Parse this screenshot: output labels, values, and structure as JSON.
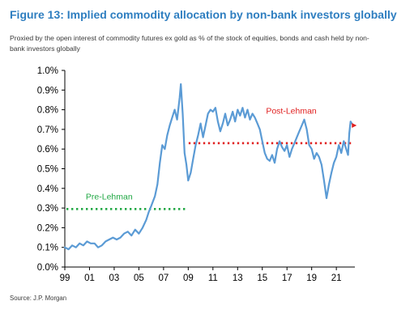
{
  "figure": {
    "title": "Figure 13: Implied commodity allocation by non-bank investors globally",
    "subtitle": "Proxied by the open interest of commodity futures ex gold as % of the stock of equities, bonds and cash held by non-bank investors globally",
    "source": "Source: J.P. Morgan"
  },
  "colors": {
    "title": "#2e7ec0",
    "line": "#5b9bd5",
    "pre_lehman": "#22a845",
    "post_lehman": "#e02020"
  },
  "chart_data": {
    "type": "line",
    "xlim": [
      1999,
      2022.5
    ],
    "ylim": [
      0,
      1.0
    ],
    "x_tick_values": [
      1999,
      2001,
      2003,
      2005,
      2007,
      2009,
      2011,
      2013,
      2015,
      2017,
      2019,
      2021
    ],
    "x_tick_labels": [
      "99",
      "01",
      "03",
      "05",
      "07",
      "09",
      "11",
      "13",
      "15",
      "17",
      "19",
      "21"
    ],
    "y_tick_values": [
      0,
      0.1,
      0.2,
      0.3,
      0.4,
      0.5,
      0.6,
      0.7,
      0.8,
      0.9,
      1.0
    ],
    "y_tick_labels": [
      "0.0%",
      "0.1%",
      "0.2%",
      "0.3%",
      "0.4%",
      "0.5%",
      "0.6%",
      "0.7%",
      "0.8%",
      "0.9%",
      "1.0%"
    ],
    "series": [
      {
        "points": [
          [
            1999.0,
            0.1
          ],
          [
            1999.3,
            0.09
          ],
          [
            1999.6,
            0.11
          ],
          [
            1999.9,
            0.1
          ],
          [
            2000.2,
            0.12
          ],
          [
            2000.5,
            0.11
          ],
          [
            2000.8,
            0.13
          ],
          [
            2001.1,
            0.12
          ],
          [
            2001.4,
            0.12
          ],
          [
            2001.7,
            0.1
          ],
          [
            2002.0,
            0.11
          ],
          [
            2002.3,
            0.13
          ],
          [
            2002.6,
            0.14
          ],
          [
            2002.9,
            0.15
          ],
          [
            2003.2,
            0.14
          ],
          [
            2003.5,
            0.15
          ],
          [
            2003.8,
            0.17
          ],
          [
            2004.1,
            0.18
          ],
          [
            2004.4,
            0.16
          ],
          [
            2004.7,
            0.19
          ],
          [
            2005.0,
            0.17
          ],
          [
            2005.3,
            0.2
          ],
          [
            2005.6,
            0.24
          ],
          [
            2005.8,
            0.28
          ],
          [
            2006.0,
            0.31
          ],
          [
            2006.3,
            0.36
          ],
          [
            2006.5,
            0.42
          ],
          [
            2006.7,
            0.53
          ],
          [
            2006.9,
            0.62
          ],
          [
            2007.1,
            0.6
          ],
          [
            2007.3,
            0.67
          ],
          [
            2007.5,
            0.72
          ],
          [
            2007.7,
            0.76
          ],
          [
            2007.9,
            0.8
          ],
          [
            2008.1,
            0.75
          ],
          [
            2008.3,
            0.86
          ],
          [
            2008.4,
            0.93
          ],
          [
            2008.55,
            0.78
          ],
          [
            2008.7,
            0.58
          ],
          [
            2008.85,
            0.52
          ],
          [
            2009.0,
            0.44
          ],
          [
            2009.2,
            0.48
          ],
          [
            2009.4,
            0.55
          ],
          [
            2009.6,
            0.62
          ],
          [
            2009.8,
            0.67
          ],
          [
            2010.0,
            0.73
          ],
          [
            2010.2,
            0.66
          ],
          [
            2010.4,
            0.72
          ],
          [
            2010.6,
            0.78
          ],
          [
            2010.8,
            0.8
          ],
          [
            2011.0,
            0.79
          ],
          [
            2011.2,
            0.81
          ],
          [
            2011.4,
            0.74
          ],
          [
            2011.6,
            0.69
          ],
          [
            2011.8,
            0.73
          ],
          [
            2012.0,
            0.78
          ],
          [
            2012.2,
            0.72
          ],
          [
            2012.4,
            0.75
          ],
          [
            2012.6,
            0.79
          ],
          [
            2012.8,
            0.74
          ],
          [
            2013.0,
            0.8
          ],
          [
            2013.2,
            0.77
          ],
          [
            2013.4,
            0.81
          ],
          [
            2013.6,
            0.76
          ],
          [
            2013.8,
            0.8
          ],
          [
            2014.0,
            0.75
          ],
          [
            2014.2,
            0.78
          ],
          [
            2014.4,
            0.76
          ],
          [
            2014.6,
            0.73
          ],
          [
            2014.8,
            0.7
          ],
          [
            2015.0,
            0.64
          ],
          [
            2015.2,
            0.58
          ],
          [
            2015.4,
            0.55
          ],
          [
            2015.6,
            0.54
          ],
          [
            2015.8,
            0.57
          ],
          [
            2016.0,
            0.53
          ],
          [
            2016.2,
            0.6
          ],
          [
            2016.4,
            0.64
          ],
          [
            2016.6,
            0.61
          ],
          [
            2016.8,
            0.59
          ],
          [
            2017.0,
            0.62
          ],
          [
            2017.2,
            0.56
          ],
          [
            2017.4,
            0.6
          ],
          [
            2017.6,
            0.63
          ],
          [
            2017.8,
            0.66
          ],
          [
            2018.0,
            0.69
          ],
          [
            2018.2,
            0.72
          ],
          [
            2018.4,
            0.75
          ],
          [
            2018.6,
            0.7
          ],
          [
            2018.8,
            0.62
          ],
          [
            2019.0,
            0.6
          ],
          [
            2019.2,
            0.55
          ],
          [
            2019.4,
            0.58
          ],
          [
            2019.6,
            0.56
          ],
          [
            2019.8,
            0.52
          ],
          [
            2020.0,
            0.44
          ],
          [
            2020.2,
            0.35
          ],
          [
            2020.4,
            0.42
          ],
          [
            2020.6,
            0.48
          ],
          [
            2020.8,
            0.53
          ],
          [
            2021.0,
            0.56
          ],
          [
            2021.2,
            0.62
          ],
          [
            2021.4,
            0.58
          ],
          [
            2021.6,
            0.64
          ],
          [
            2021.8,
            0.6
          ],
          [
            2021.95,
            0.57
          ],
          [
            2022.05,
            0.68
          ],
          [
            2022.15,
            0.74
          ],
          [
            2022.25,
            0.73
          ]
        ]
      }
    ],
    "reference_lines": [
      {
        "label": "Pre-Lehman",
        "y": 0.295,
        "x_start": 1999,
        "x_end": 2008.9,
        "style": "dotted",
        "color": "#22a845"
      },
      {
        "label": "Post-Lehman",
        "y": 0.63,
        "x_start": 2008.9,
        "x_end": 2022.2,
        "style": "dotted",
        "color": "#e02020"
      }
    ],
    "latest_marker": {
      "x": 2022.45,
      "y": 0.72,
      "color": "#e02020"
    },
    "grid": false,
    "legend": "none"
  }
}
